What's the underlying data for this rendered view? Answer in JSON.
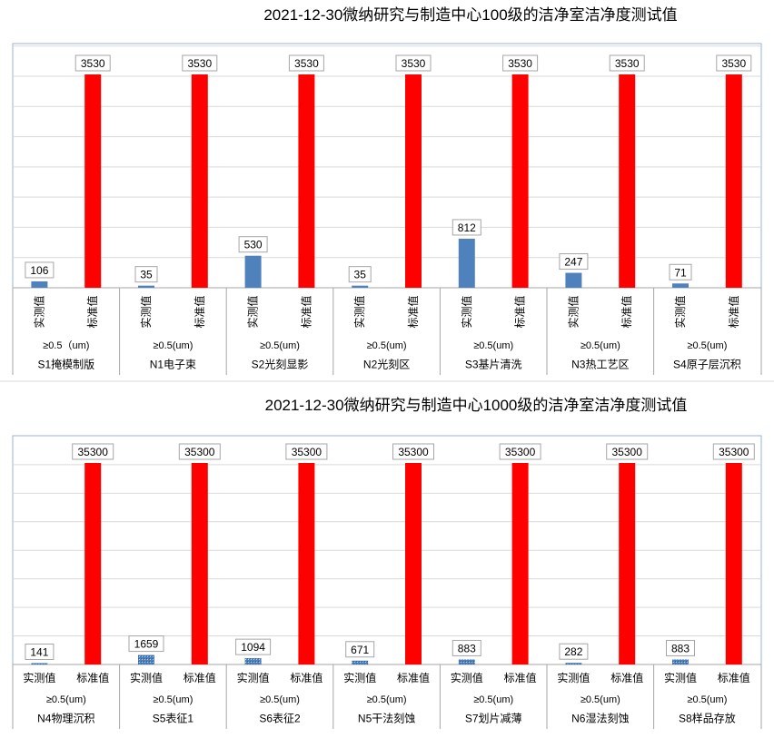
{
  "chart_data": [
    {
      "type": "bar",
      "title": "2021-12-30微纳研究与制造中心100级的洁净室洁净度测试值",
      "series": [
        {
          "name": "实测值",
          "color": "#4F81BD"
        },
        {
          "name": "标准值",
          "color": "#FF0000"
        }
      ],
      "groups": [
        {
          "room": "S1掩模制版",
          "size": "≥0.5（um)",
          "measured": 106,
          "standard": 3530
        },
        {
          "room": "N1电子束",
          "size": "≥0.5(um)",
          "measured": 35,
          "standard": 3530
        },
        {
          "room": "S2光刻显影",
          "size": "≥0.5(um)",
          "measured": 530,
          "standard": 3530
        },
        {
          "room": "N2光刻区",
          "size": "≥0.5(um)",
          "measured": 35,
          "standard": 3530
        },
        {
          "room": "S3基片清洗",
          "size": "≥0.5(um)",
          "measured": 812,
          "standard": 3530
        },
        {
          "room": "N3热工艺区",
          "size": "≥0.5(um)",
          "measured": 247,
          "standard": 3530
        },
        {
          "room": "S4原子层沉积",
          "size": "≥0.5(um)",
          "measured": 71,
          "standard": 3530
        }
      ],
      "ylim": [
        0,
        4000
      ],
      "grid": true,
      "vertical_series_labels": true
    },
    {
      "type": "bar",
      "title": "2021-12-30微纳研究与制造中心1000级的洁净室洁净度测试值",
      "series": [
        {
          "name": "实测值",
          "color": "#4F81BD"
        },
        {
          "name": "标准值",
          "color": "#FF0000"
        }
      ],
      "groups": [
        {
          "room": "N4物理沉积",
          "size": "≥0.5(um)",
          "measured": 141,
          "standard": 35300
        },
        {
          "room": "S5表征1",
          "size": "≥0.5(um)",
          "measured": 1659,
          "standard": 35300
        },
        {
          "room": "S6表征2",
          "size": "≥0.5(um)",
          "measured": 1094,
          "standard": 35300
        },
        {
          "room": "N5干法刻蚀",
          "size": "≥0.5(um)",
          "measured": 671,
          "standard": 35300
        },
        {
          "room": "S7划片减薄",
          "size": "≥0.5(um)",
          "measured": 883,
          "standard": 35300
        },
        {
          "room": "N6湿法刻蚀",
          "size": "≥0.5(um)",
          "measured": 282,
          "standard": 35300
        },
        {
          "room": "S8样品存放",
          "size": "≥0.5(um)",
          "measured": 883,
          "standard": 35300
        }
      ],
      "ylim": [
        0,
        40000
      ],
      "grid": true,
      "vertical_series_labels": false
    }
  ]
}
